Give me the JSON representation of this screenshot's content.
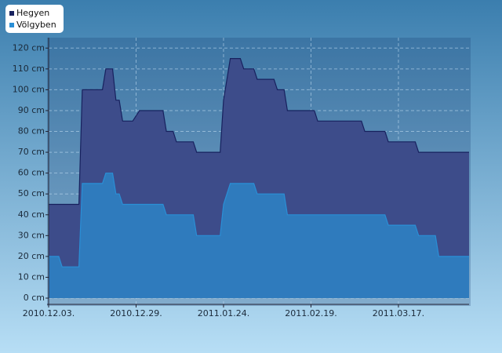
{
  "chart_data": {
    "type": "area",
    "x": [
      "2010-12-03",
      "2010-12-06",
      "2010-12-07",
      "2010-12-12",
      "2010-12-13",
      "2010-12-19",
      "2010-12-20",
      "2010-12-22",
      "2010-12-23",
      "2010-12-24",
      "2010-12-25",
      "2010-12-28",
      "2010-12-30",
      "2011-01-06",
      "2011-01-07",
      "2011-01-09",
      "2011-01-10",
      "2011-01-15",
      "2011-01-16",
      "2011-01-23",
      "2011-01-24",
      "2011-01-26",
      "2011-01-29",
      "2011-01-30",
      "2011-02-02",
      "2011-02-03",
      "2011-02-08",
      "2011-02-09",
      "2011-02-11",
      "2011-02-12",
      "2011-02-20",
      "2011-02-21",
      "2011-03-06",
      "2011-03-07",
      "2011-03-13",
      "2011-03-14",
      "2011-03-22",
      "2011-03-23",
      "2011-03-28",
      "2011-03-29",
      "2011-04-07"
    ],
    "series": [
      {
        "name": "Hegyen",
        "color": "#17215e",
        "fill": "#3d4c8a",
        "values": [
          45,
          45,
          45,
          45,
          100,
          100,
          110,
          110,
          95,
          95,
          85,
          85,
          90,
          90,
          80,
          80,
          75,
          75,
          70,
          70,
          95,
          115,
          115,
          110,
          110,
          105,
          105,
          100,
          100,
          90,
          90,
          85,
          85,
          80,
          80,
          75,
          75,
          70,
          70,
          70,
          70
        ]
      },
      {
        "name": "Völgyben",
        "color": "#2a8fd6",
        "fill": "#2f7bbd",
        "values": [
          20,
          20,
          15,
          15,
          55,
          55,
          60,
          60,
          50,
          50,
          45,
          45,
          45,
          45,
          40,
          40,
          40,
          40,
          30,
          30,
          45,
          55,
          55,
          55,
          55,
          50,
          50,
          50,
          50,
          40,
          40,
          40,
          40,
          40,
          40,
          35,
          35,
          30,
          30,
          20,
          20
        ]
      }
    ],
    "xlim": [
      "2010-12-03",
      "2011-04-07"
    ],
    "xticks": [
      {
        "value": "2010-12-03",
        "label": "2010.12.03."
      },
      {
        "value": "2010-12-29",
        "label": "2010.12.29."
      },
      {
        "value": "2011-01-24",
        "label": "2011.01.24."
      },
      {
        "value": "2011-02-19",
        "label": "2011.02.19."
      },
      {
        "value": "2011-03-17",
        "label": "2011.03.17."
      }
    ],
    "ylim": [
      -3,
      125
    ],
    "yticks": [
      {
        "value": 0,
        "label": "0 cm"
      },
      {
        "value": 10,
        "label": "10 cm"
      },
      {
        "value": 20,
        "label": "20 cm"
      },
      {
        "value": 30,
        "label": "30 cm"
      },
      {
        "value": 40,
        "label": "40 cm"
      },
      {
        "value": 50,
        "label": "50 cm"
      },
      {
        "value": 60,
        "label": "60 cm"
      },
      {
        "value": 70,
        "label": "70 cm"
      },
      {
        "value": 80,
        "label": "80 cm"
      },
      {
        "value": 90,
        "label": "90 cm"
      },
      {
        "value": 100,
        "label": "100 cm"
      },
      {
        "value": 110,
        "label": "110 cm"
      },
      {
        "value": 120,
        "label": "120 cm"
      }
    ],
    "grid": true,
    "legend": "top-left"
  }
}
